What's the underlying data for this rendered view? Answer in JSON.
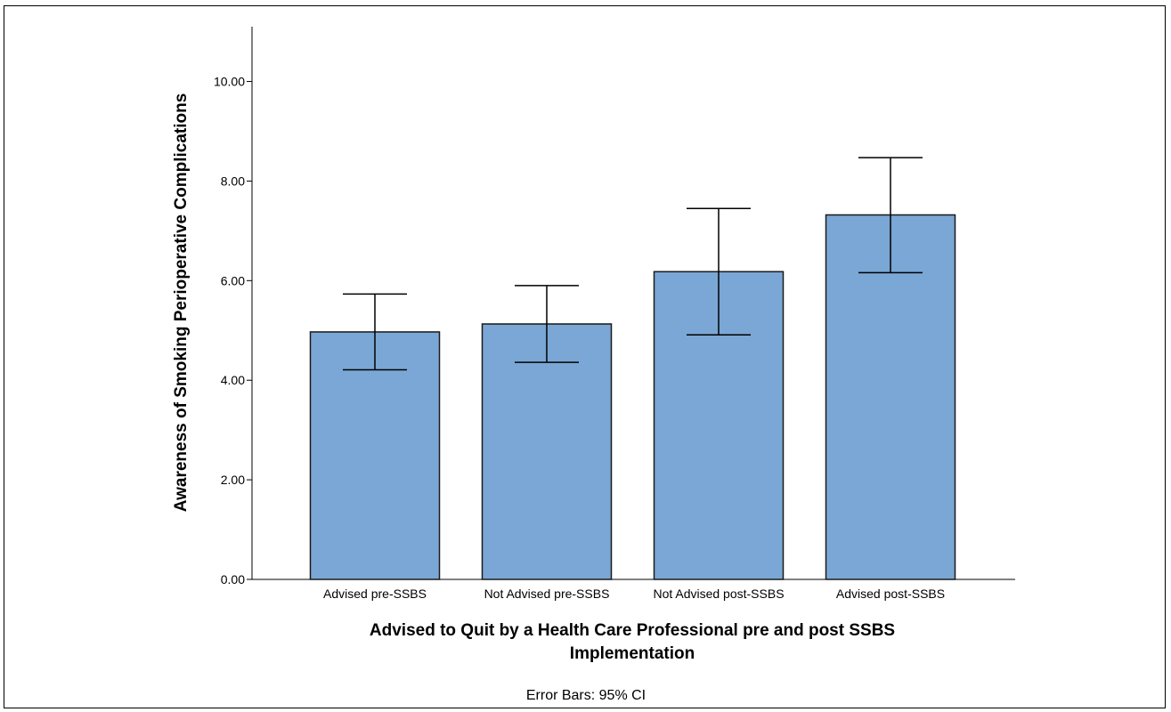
{
  "chart_data": {
    "type": "bar",
    "categories": [
      "Advised pre-SSBS",
      "Not Advised pre-SSBS",
      "Not Advised post-SSBS",
      "Advised post-SSBS"
    ],
    "values": [
      4.97,
      5.13,
      6.18,
      7.32
    ],
    "error_bars": {
      "lower": [
        4.21,
        4.36,
        4.91,
        6.16
      ],
      "upper": [
        5.73,
        5.9,
        7.45,
        8.47
      ]
    },
    "xlabel_lines": [
      "Advised to Quit by a Health Care Professional pre and post SSBS",
      "Implementation"
    ],
    "ylabel": "Awareness of Smoking Perioperative Complications",
    "yticks": [
      "0.00",
      "2.00",
      "4.00",
      "6.00",
      "8.00",
      "10.00"
    ],
    "ylim": [
      0,
      11.1
    ],
    "grid": false,
    "footnote": "Error Bars: 95% CI",
    "bar_color": "#7aa7d5",
    "bar_edge_color": "#1a1a1a"
  }
}
